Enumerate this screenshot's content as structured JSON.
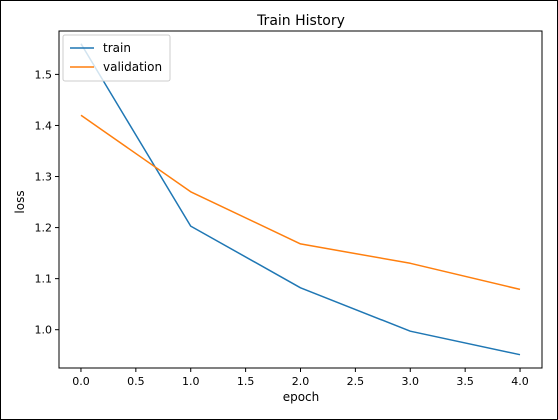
{
  "chart_data": {
    "type": "line",
    "title": "Train History",
    "xlabel": "epoch",
    "ylabel": "loss",
    "x": [
      0,
      1,
      2,
      3,
      4
    ],
    "xlim": [
      -0.2,
      4.2
    ],
    "ylim": [
      0.925,
      1.585
    ],
    "xticks": [
      "0.0",
      "0.5",
      "1.0",
      "1.5",
      "2.0",
      "2.5",
      "3.0",
      "3.5",
      "4.0"
    ],
    "yticks": [
      "1.0",
      "1.1",
      "1.2",
      "1.3",
      "1.4",
      "1.5"
    ],
    "grid": false,
    "legend_position": "top-left",
    "series": [
      {
        "name": "train",
        "color": "#1f77b4",
        "values": [
          1.56,
          1.203,
          1.082,
          0.997,
          0.951
        ]
      },
      {
        "name": "validation",
        "color": "#ff7f0e",
        "values": [
          1.42,
          1.27,
          1.168,
          1.13,
          1.079
        ]
      }
    ]
  }
}
